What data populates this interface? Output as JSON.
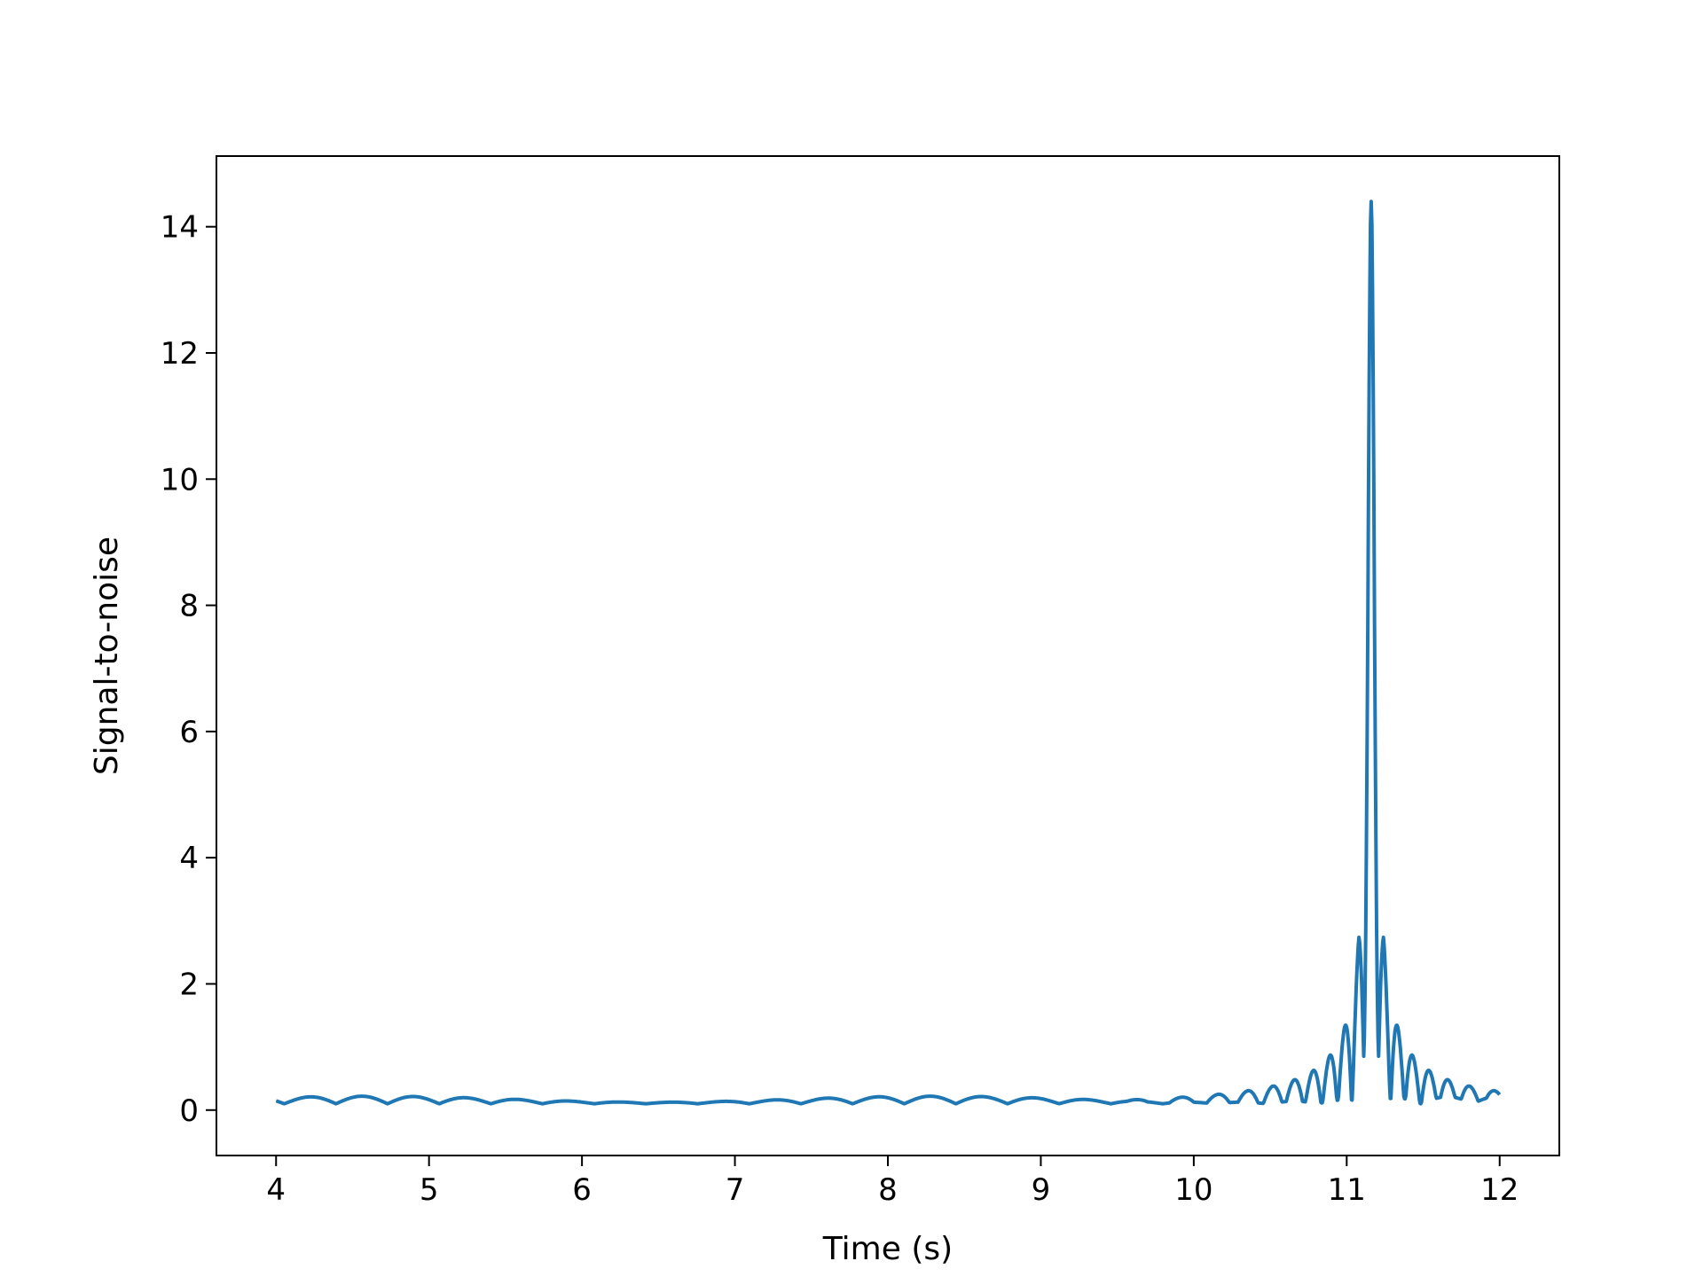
{
  "chart_data": {
    "type": "line",
    "title": "",
    "xlabel": "Time (s)",
    "ylabel": "Signal-to-noise",
    "xlim": [
      3.61,
      12.39
    ],
    "ylim": [
      -0.72,
      15.12
    ],
    "xticks": [
      4,
      5,
      6,
      7,
      8,
      9,
      10,
      11,
      12
    ],
    "yticks": [
      0,
      2,
      4,
      6,
      8,
      10,
      12,
      14
    ],
    "grid": false,
    "legend": "none",
    "series": [
      {
        "color": "#1f77b4",
        "x_range": [
          4.0,
          12.0
        ],
        "peak": {
          "x": 11.16,
          "y": 14.4
        },
        "sidelobes": [
          {
            "x": 11.08,
            "y": 2.75
          },
          {
            "x": 11.24,
            "y": 2.75
          },
          {
            "x": 11.0,
            "y": 1.6
          },
          {
            "x": 11.32,
            "y": 1.6
          },
          {
            "x": 10.92,
            "y": 1.15
          },
          {
            "x": 11.4,
            "y": 1.15
          },
          {
            "x": 10.84,
            "y": 0.9
          },
          {
            "x": 11.48,
            "y": 0.9
          },
          {
            "x": 10.76,
            "y": 0.72
          },
          {
            "x": 11.56,
            "y": 0.72
          }
        ],
        "baseline_level": 0.1,
        "baseline_ripple": 0.12
      }
    ]
  }
}
